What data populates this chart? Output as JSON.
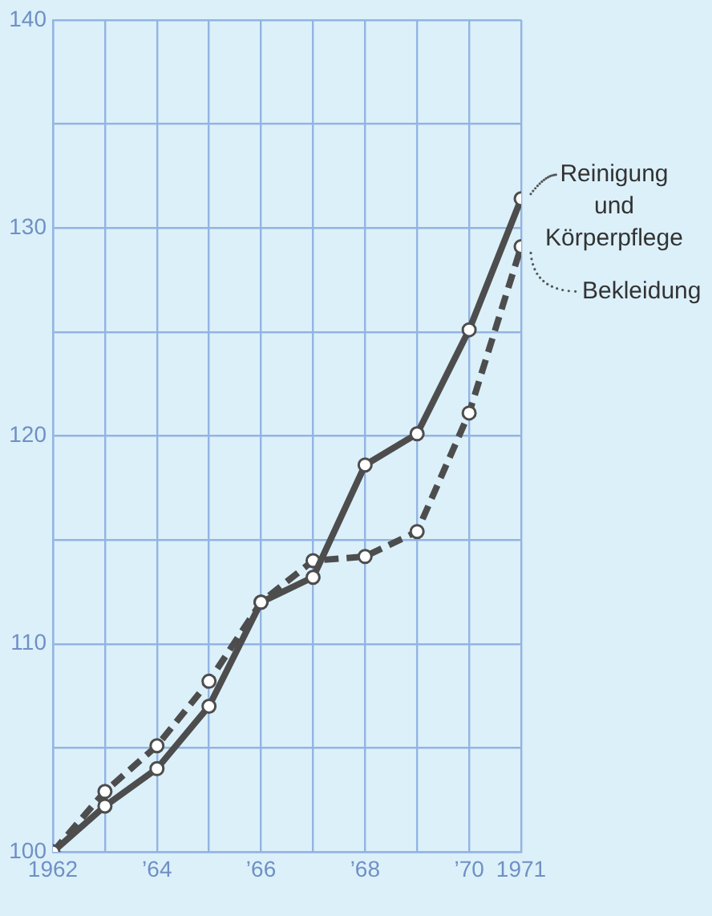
{
  "chart_data": {
    "type": "line",
    "x": [
      1962,
      1963,
      1964,
      1965,
      1966,
      1967,
      1968,
      1969,
      1970,
      1971
    ],
    "series": [
      {
        "name": "Reinigung und Körperpflege",
        "color": "#4d4d4d",
        "line_style": "solid",
        "values": [
          100,
          102.2,
          104,
          107,
          112,
          113.2,
          118.6,
          120.1,
          125.1,
          131.4
        ]
      },
      {
        "name": "Bekleidung",
        "color": "#4d4d4d",
        "line_style": "dashed",
        "values": [
          100,
          102.9,
          105.1,
          108.2,
          112,
          114,
          114.2,
          115.4,
          121.1,
          129.1
        ]
      }
    ],
    "xlim": [
      1962,
      1971
    ],
    "xticks": [
      1962,
      {
        "value": 1963,
        "label": null
      },
      {
        "value": 1964,
        "label": "’64"
      },
      {
        "value": 1965,
        "label": null
      },
      {
        "value": 1966,
        "label": "’66"
      },
      {
        "value": 1967,
        "label": null
      },
      {
        "value": 1968,
        "label": "’68"
      },
      {
        "value": 1969,
        "label": null
      },
      {
        "value": 1970,
        "label": "’70"
      },
      1971
    ],
    "ylim": [
      100,
      140
    ],
    "yticks": [
      100,
      {
        "value": 105,
        "label": null
      },
      110,
      {
        "value": 115,
        "label": null
      },
      120,
      {
        "value": 125,
        "label": null
      },
      130,
      {
        "value": 135,
        "label": null
      },
      140
    ],
    "grid": true,
    "legend": "right",
    "marker": "circle"
  }
}
